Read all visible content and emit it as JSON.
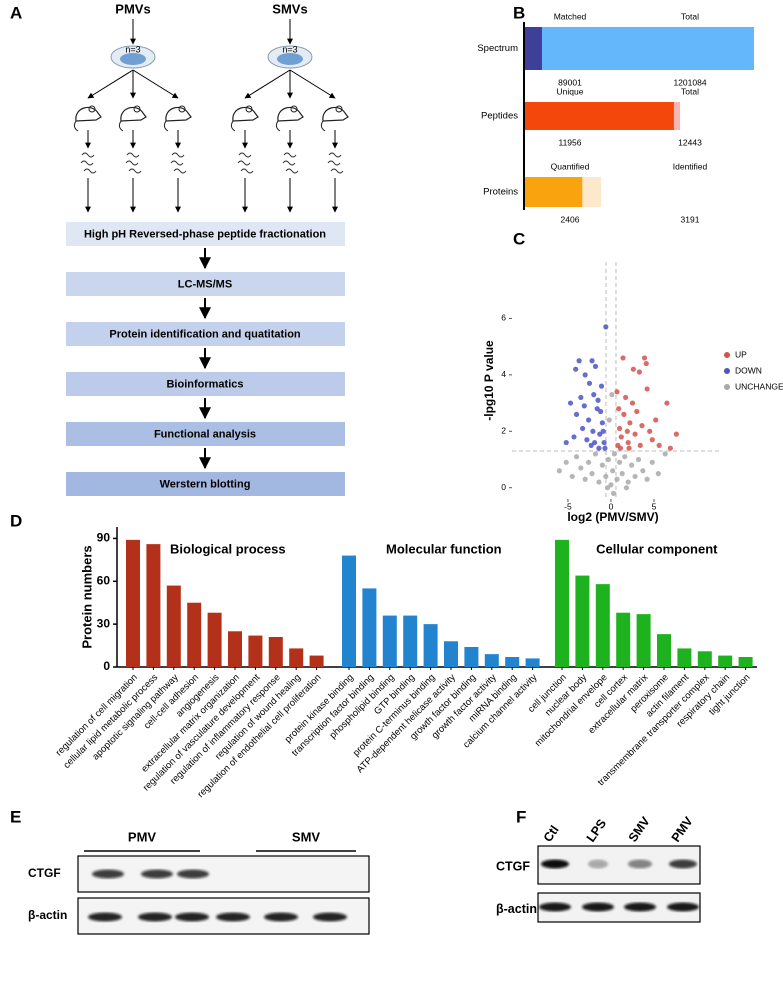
{
  "panel_labels": [
    "A",
    "B",
    "C",
    "D",
    "E",
    "F"
  ],
  "workflow": {
    "sources": [
      {
        "name": "PMVs",
        "n": "n=3"
      },
      {
        "name": "SMVs",
        "n": "n=3"
      }
    ],
    "steps": [
      "High pH Reversed-phase peptide fractionation",
      "LC-MS/MS",
      "Protein identification and quatitation",
      "Bioinformatics",
      "Functional analysis",
      "Werstern blotting"
    ],
    "box_colors": [
      "#dfe7f5",
      "#c9d6ee",
      "#c3d1ec",
      "#bccbe9",
      "#aabfe3",
      "#a3b8e0"
    ]
  },
  "chart_data": [
    {
      "type": "overlay-bar",
      "rows": [
        {
          "name": "Spectrum",
          "parts": [
            {
              "label": "Matched",
              "value": 89001,
              "color": "#3d3f98"
            },
            {
              "label": "Total",
              "value": 1201084,
              "color": "#64b7fa"
            }
          ]
        },
        {
          "name": "Peptides",
          "parts": [
            {
              "label": "Unique",
              "value": 11956,
              "color": "#f3470b"
            },
            {
              "label": "Total",
              "value": 12443,
              "color": "#f8b6b3"
            }
          ]
        },
        {
          "name": "Proteins",
          "parts": [
            {
              "label": "Quantified",
              "value": 2406,
              "color": "#f9a40f"
            },
            {
              "label": "Identified",
              "value": 3191,
              "color": "#fde8cc"
            }
          ]
        }
      ]
    },
    {
      "type": "scatter",
      "xlabel": "log2 (PMV/SMV)",
      "ylabel": "-lpg10 P value",
      "xlim": [
        -11.5,
        12.9
      ],
      "ylim": [
        -0.4,
        8
      ],
      "xticks": [
        -5,
        0,
        5
      ],
      "yticks": [
        0,
        2,
        4,
        6
      ],
      "thresholds": {
        "x": [
          -0.58,
          0.58
        ],
        "y": 1.3
      },
      "legend": "right",
      "series": [
        {
          "name": "UP",
          "color": "#d6504c",
          "x": [
            0.8,
            1.0,
            1.2,
            1.5,
            1.7,
            2.0,
            2.2,
            2.5,
            2.8,
            3.0,
            3.3,
            3.6,
            3.9,
            4.2,
            4.5,
            4.8,
            5.2,
            5.6,
            6.5,
            7.6,
            0.7,
            1.4,
            2.6,
            1.1,
            2.1,
            3.4,
            0.9,
            1.9,
            4.1,
            6.9
          ],
          "y": [
            1.5,
            2.1,
            1.8,
            2.6,
            3.2,
            1.6,
            2.3,
            3.0,
            1.9,
            2.7,
            4.1,
            2.2,
            4.6,
            3.5,
            2.0,
            1.7,
            2.4,
            1.5,
            3.0,
            1.9,
            3.4,
            4.6,
            4.2,
            1.4,
            1.4,
            1.5,
            2.8,
            2.0,
            4.4,
            1.4
          ]
        },
        {
          "name": "DOWN",
          "color": "#4b55c4",
          "x": [
            -0.8,
            -1.0,
            -1.3,
            -1.6,
            -2.0,
            -2.3,
            -2.6,
            -3.0,
            -3.3,
            -3.7,
            -4.0,
            -4.3,
            -4.7,
            -5.2,
            -1.1,
            -1.8,
            -2.5,
            -0.9,
            -1.4,
            -2.1,
            -2.8,
            -3.5,
            -1.2,
            -0.7,
            -1.9,
            -4.1,
            -3.1,
            -0.6,
            -2.2,
            -1.5
          ],
          "y": [
            1.6,
            2.3,
            1.9,
            2.8,
            3.3,
            1.5,
            2.4,
            4.0,
            2.1,
            4.5,
            2.6,
            1.8,
            3.0,
            1.6,
            3.6,
            4.3,
            3.7,
            2.0,
            1.4,
            2.0,
            1.7,
            3.2,
            2.7,
            1.4,
            1.6,
            4.2,
            2.9,
            5.7,
            4.5,
            3.1
          ]
        },
        {
          "name": "UNCHANGE",
          "color": "#a9a9a9",
          "x": [
            -6.0,
            -5.2,
            -4.5,
            -4.0,
            -3.5,
            -3.0,
            -2.6,
            -2.2,
            -1.8,
            -1.4,
            -1.0,
            -0.6,
            -0.3,
            0.0,
            0.2,
            0.4,
            0.7,
            1.0,
            1.3,
            1.6,
            2.0,
            2.4,
            2.8,
            3.2,
            3.7,
            4.2,
            4.8,
            5.5,
            6.3,
            -0.2,
            0.1,
            -0.4,
            0.3,
            1.8
          ],
          "y": [
            0.6,
            0.9,
            0.4,
            1.1,
            0.7,
            0.3,
            0.9,
            0.5,
            1.2,
            0.2,
            0.8,
            0.4,
            1.0,
            0.1,
            0.6,
            1.2,
            0.3,
            0.9,
            0.5,
            1.1,
            0.2,
            0.8,
            0.4,
            1.0,
            0.6,
            0.3,
            0.9,
            0.5,
            1.2,
            2.4,
            3.3,
            0.0,
            -0.2,
            0.0
          ]
        }
      ]
    },
    {
      "type": "grouped-bar",
      "ylabel": "Protein numbers",
      "ylim": [
        0,
        98
      ],
      "yticks": [
        0,
        30,
        60,
        90
      ],
      "highlight_color": "#d0312d",
      "groups": [
        {
          "name": "Biological process",
          "color": "#b3301a",
          "categories": [
            "regulation of cell migration",
            "cellular lipid metabolic process",
            "apoptotic signaling pathway",
            "cell-cell adhesion",
            "angiogenesis",
            "extracellular matrix organization",
            "regulation of vasculature development",
            "regulation of inflammatory response",
            "regulation of wound healing",
            "regulation of endothelial cell proliferation"
          ],
          "values": [
            89,
            86,
            57,
            45,
            38,
            25,
            22,
            21,
            13,
            8
          ],
          "highlighted": [
            true,
            false,
            false,
            false,
            true,
            false,
            false,
            false,
            false,
            true
          ]
        },
        {
          "name": "Molecular function",
          "color": "#2283cf",
          "categories": [
            "protein kinase binding",
            "transcription factor binding",
            "phospholipid binding",
            "GTP binding",
            "protein C-terminus binding",
            "ATP-dependent helicase activity",
            "growth factor binding",
            "growth factor activity",
            "miRNA binding",
            "calcium channel activity"
          ],
          "values": [
            78,
            55,
            36,
            36,
            30,
            18,
            14,
            9,
            7,
            6
          ]
        },
        {
          "name": "Cellular component",
          "color": "#1fb21f",
          "categories": [
            "cell junction",
            "nuclear body",
            "mitochondrial envelope",
            "cell cortex",
            "extracellular matrix",
            "peroxisome",
            "actin filament",
            "transmembrane transporter complex",
            "respiratory chain",
            "tight junction"
          ],
          "values": [
            89,
            64,
            58,
            38,
            37,
            23,
            13,
            11,
            8,
            7
          ]
        }
      ]
    }
  ],
  "western_blot_e": {
    "groups": [
      "PMV",
      "SMV"
    ],
    "rows": [
      "CTGF",
      "β-actin"
    ]
  },
  "western_blot_f": {
    "lanes": [
      "Ctl",
      "LPS",
      "SMV",
      "PMV"
    ],
    "rows": [
      "CTGF",
      "β-actin"
    ]
  }
}
